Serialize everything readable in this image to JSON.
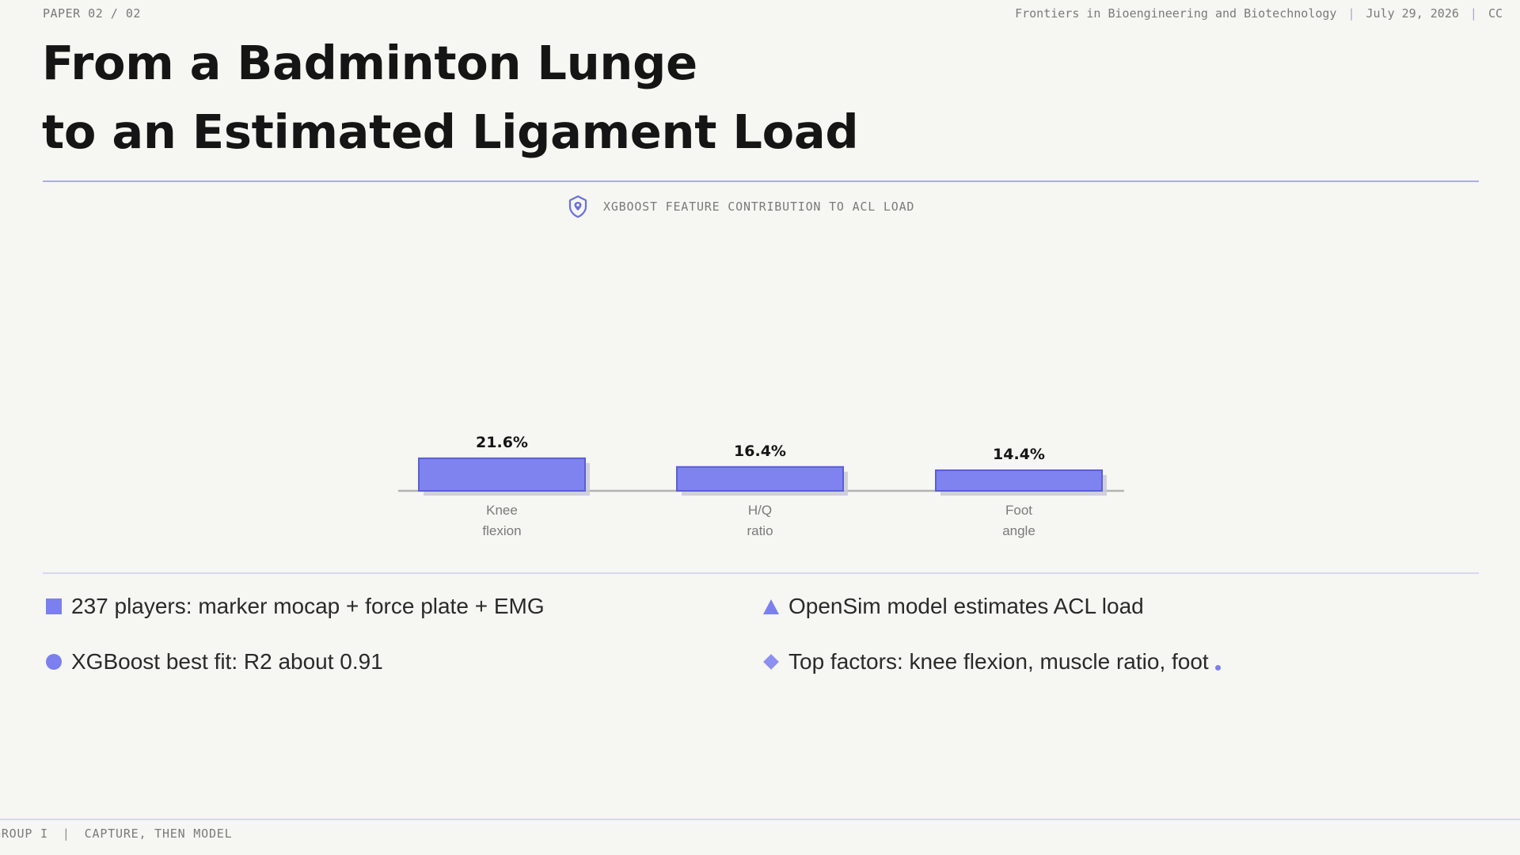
{
  "header": {
    "left": "PAPER 02 / 02",
    "journal": "Frontiers in Bioengineering and Biotechnology",
    "date": "July 29, 2026",
    "license": "CC"
  },
  "title": {
    "line1": "From a Badminton Lunge",
    "line2": "to an Estimated Ligament Load"
  },
  "chart_heading": {
    "icon": "shield-pin-icon",
    "label": "XGBOOST FEATURE CONTRIBUTION TO ACL LOAD"
  },
  "chart_data": {
    "type": "bar",
    "categories": [
      [
        "Knee",
        "flexion"
      ],
      [
        "H/Q",
        "ratio"
      ],
      [
        "Foot",
        "angle"
      ]
    ],
    "values": [
      21.6,
      16.4,
      14.4
    ],
    "value_labels": [
      "21.6%",
      "16.4%",
      "14.4%"
    ],
    "title": "XGBOOST FEATURE CONTRIBUTION TO ACL LOAD",
    "xlabel": "",
    "ylabel": "",
    "grid": false,
    "colors": {
      "bar": "#7e83ef",
      "bar_border": "#5a5fd6",
      "shadow": "#c9c9d3",
      "baseline": "#b3b3b3"
    }
  },
  "bullets": [
    {
      "marker": "square",
      "text": "237 players: marker mocap + force plate + EMG"
    },
    {
      "marker": "triangle",
      "text": "OpenSim model estimates ACL load"
    },
    {
      "marker": "circle",
      "text": "XGBoost best fit: R2 about 0.91"
    },
    {
      "marker": "diamond",
      "text": "Top factors: knee flexion, muscle ratio, foot"
    }
  ],
  "footer": {
    "group": "GROUP I",
    "tagline": "CAPTURE, THEN MODEL"
  },
  "colors": {
    "accent": "#7b80ee",
    "rule": "#a9adeb",
    "background": "#f6f6f2"
  }
}
